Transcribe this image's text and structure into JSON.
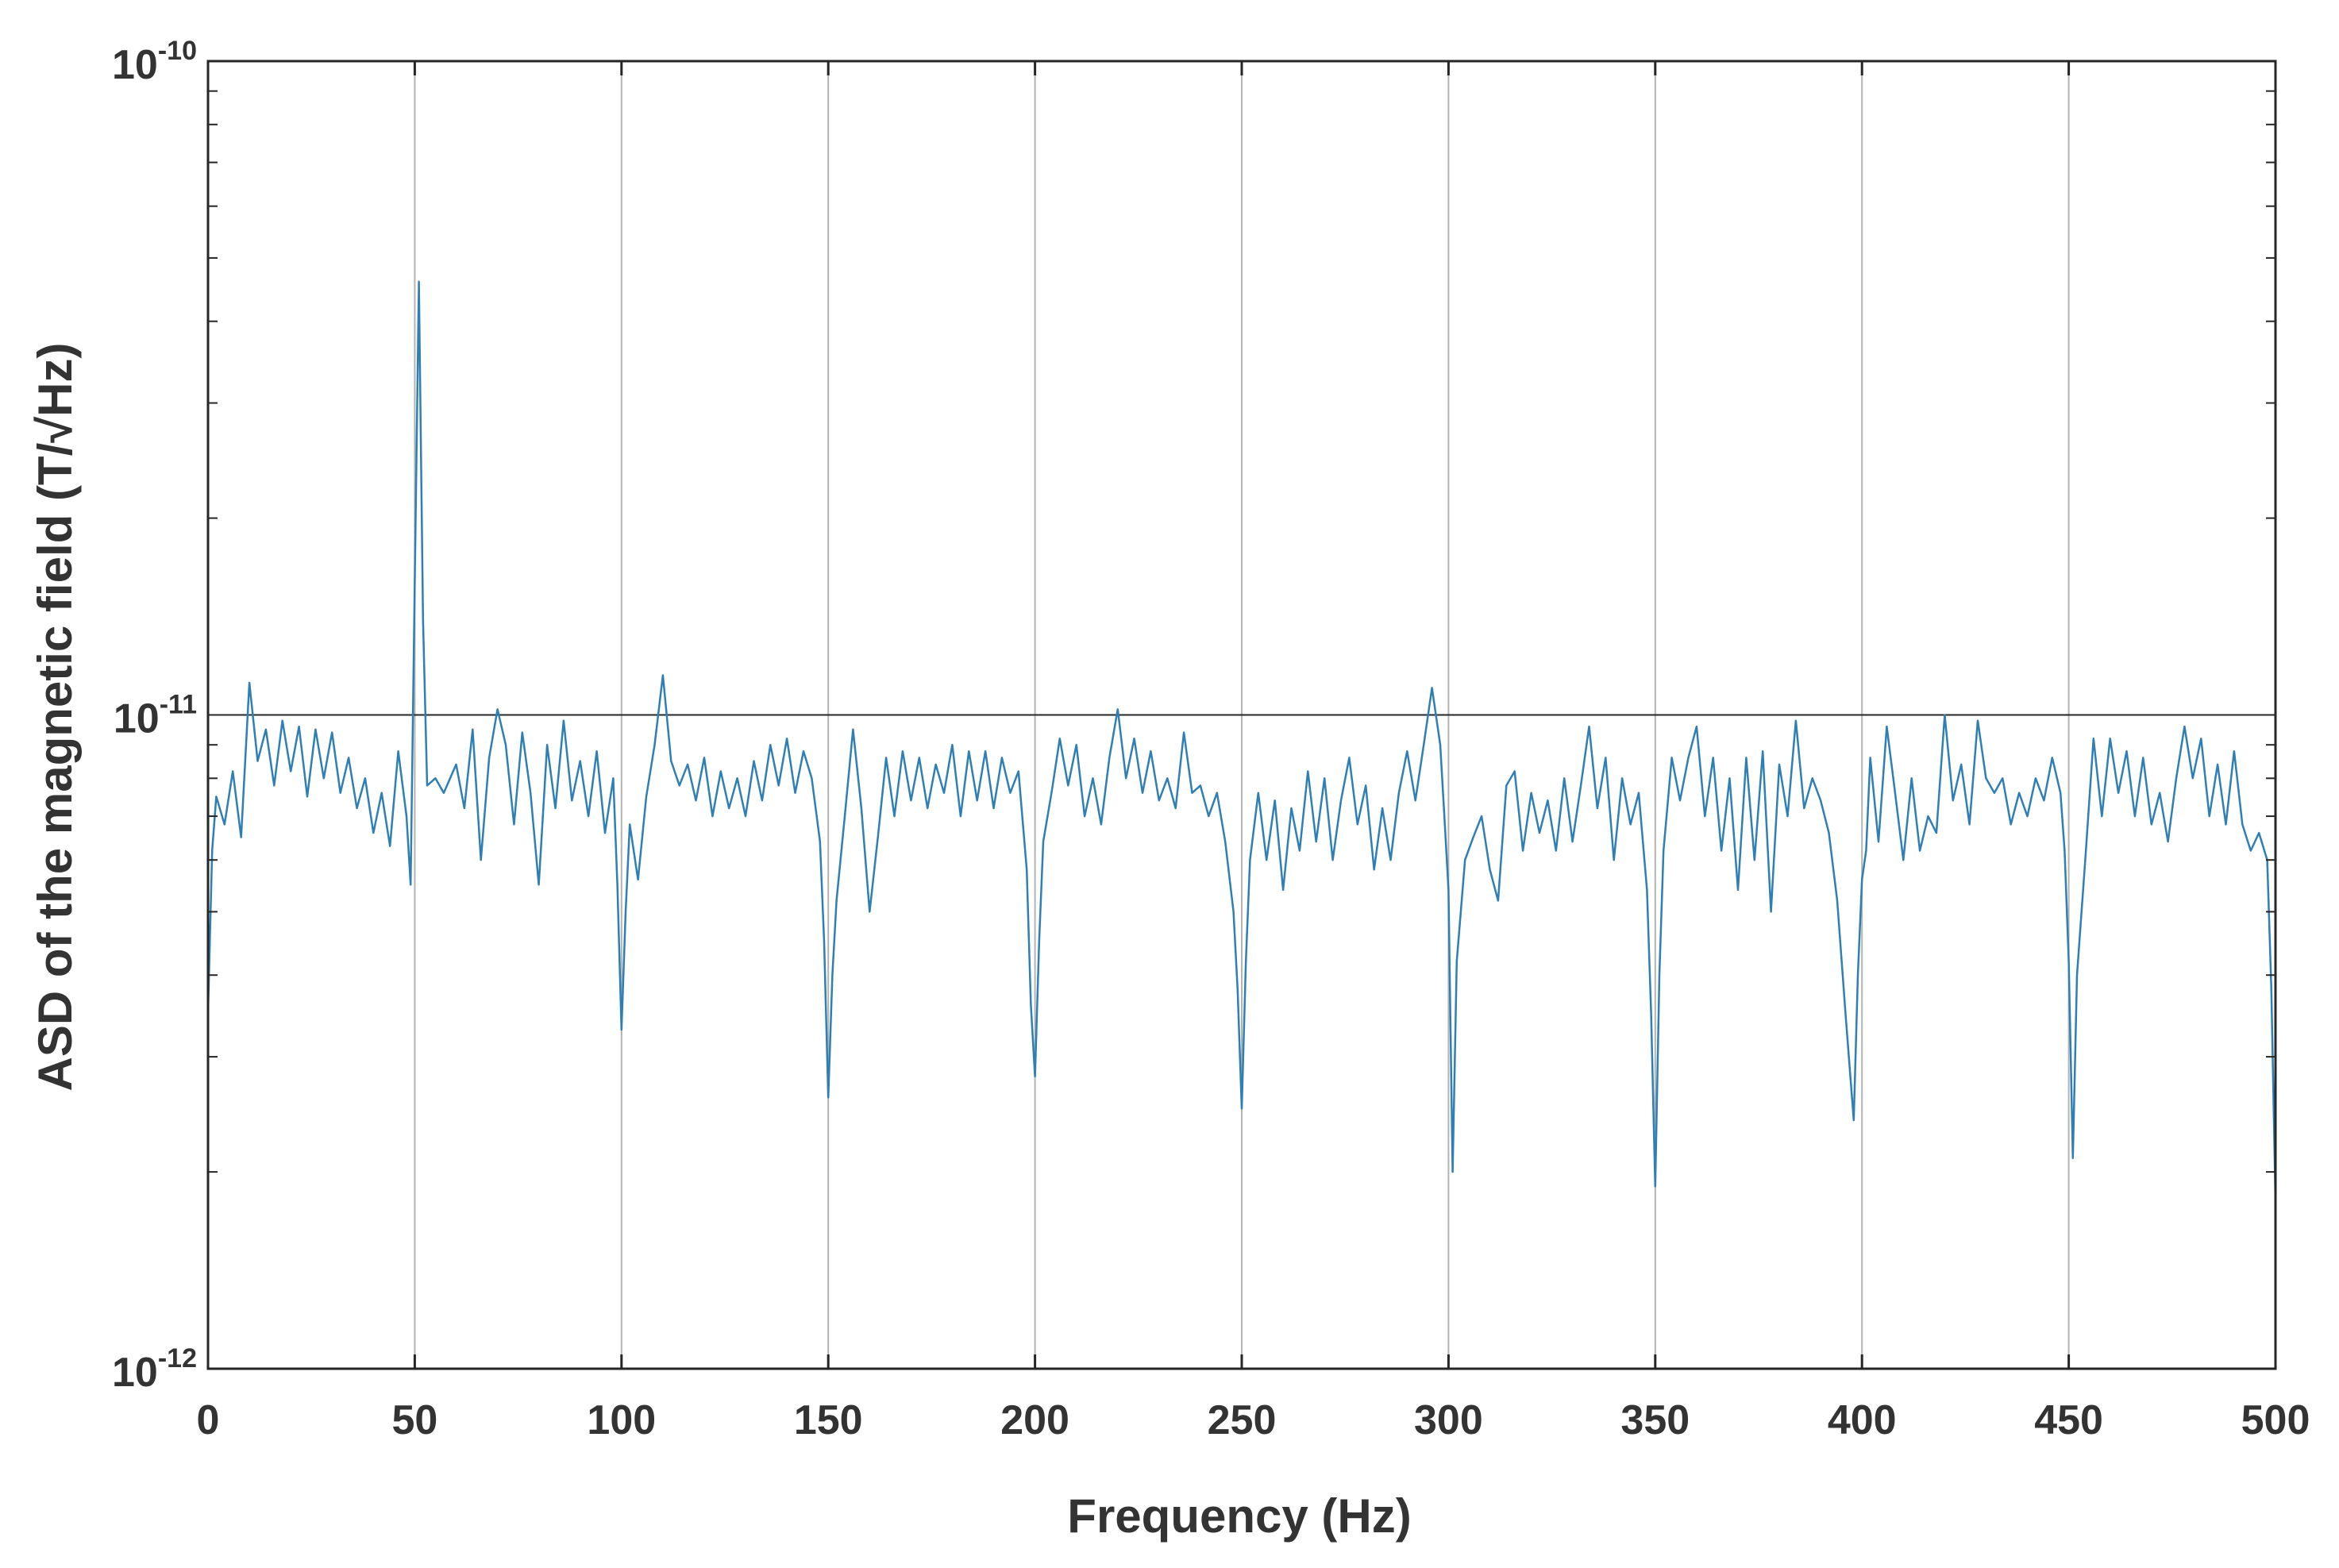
{
  "chart_data": {
    "type": "line",
    "title": "",
    "xlabel": "Frequency (Hz)",
    "ylabel": "ASD of the magnetic field (T/√Hz)",
    "xlim": [
      0,
      500
    ],
    "ylim": [
      1e-12,
      1e-10
    ],
    "yscale": "log",
    "grid": true,
    "x_ticks": [
      0,
      50,
      100,
      150,
      200,
      250,
      300,
      350,
      400,
      450,
      500
    ],
    "x_tick_labels": [
      "0",
      "50",
      "100",
      "150",
      "200",
      "250",
      "300",
      "350",
      "400",
      "450",
      "500"
    ],
    "y_ticks": [
      1e-12,
      1e-11,
      1e-10
    ],
    "y_tick_labels": [
      {
        "base": "10",
        "exp": "-12"
      },
      {
        "base": "10",
        "exp": "-11"
      },
      {
        "base": "10",
        "exp": "-10"
      }
    ],
    "series": [
      {
        "color": "#2f7fb5",
        "x": [
          0,
          1,
          2,
          4,
          6,
          8,
          10,
          12,
          14,
          16,
          18,
          20,
          22,
          24,
          26,
          28,
          30,
          32,
          34,
          36,
          38,
          40,
          42,
          44,
          46,
          48,
          49,
          50,
          51,
          52,
          53,
          55,
          57,
          60,
          62,
          64,
          66,
          68,
          70,
          72,
          74,
          76,
          78,
          80,
          82,
          84,
          86,
          88,
          90,
          92,
          94,
          96,
          98,
          99,
          100,
          101,
          102,
          104,
          106,
          108,
          110,
          112,
          114,
          116,
          118,
          120,
          122,
          124,
          126,
          128,
          130,
          132,
          134,
          136,
          138,
          140,
          142,
          144,
          146,
          148,
          149,
          150,
          151,
          152,
          154,
          156,
          158,
          160,
          162,
          164,
          166,
          168,
          170,
          172,
          174,
          176,
          178,
          180,
          182,
          184,
          186,
          188,
          190,
          192,
          194,
          196,
          198,
          199,
          200,
          201,
          202,
          204,
          206,
          208,
          210,
          212,
          214,
          216,
          218,
          220,
          222,
          224,
          226,
          228,
          230,
          232,
          234,
          236,
          238,
          240,
          242,
          244,
          246,
          248,
          249,
          250,
          251,
          252,
          254,
          256,
          258,
          260,
          262,
          264,
          266,
          268,
          270,
          272,
          274,
          276,
          278,
          280,
          282,
          284,
          286,
          288,
          290,
          292,
          294,
          296,
          298,
          299,
          300,
          301,
          302,
          304,
          306,
          308,
          310,
          312,
          314,
          316,
          318,
          320,
          322,
          324,
          326,
          328,
          330,
          332,
          334,
          336,
          338,
          340,
          342,
          344,
          346,
          348,
          349,
          350,
          351,
          352,
          354,
          356,
          358,
          360,
          362,
          364,
          366,
          368,
          370,
          372,
          374,
          376,
          378,
          380,
          382,
          384,
          386,
          388,
          390,
          392,
          394,
          396,
          398,
          399,
          400,
          401,
          402,
          404,
          406,
          408,
          410,
          412,
          414,
          416,
          418,
          420,
          422,
          424,
          426,
          428,
          430,
          432,
          434,
          436,
          438,
          440,
          442,
          444,
          446,
          448,
          449,
          450,
          451,
          452,
          454,
          456,
          458,
          460,
          462,
          464,
          466,
          468,
          470,
          472,
          474,
          476,
          478,
          480,
          482,
          484,
          486,
          488,
          490,
          492,
          494,
          496,
          498,
          499,
          500
        ],
        "y": [
          3.5e-12,
          6.2e-12,
          7.5e-12,
          6.8e-12,
          8.2e-12,
          6.5e-12,
          1.12e-11,
          8.5e-12,
          9.5e-12,
          7.8e-12,
          9.8e-12,
          8.2e-12,
          9.6e-12,
          7.5e-12,
          9.5e-12,
          8e-12,
          9.4e-12,
          7.6e-12,
          8.6e-12,
          7.2e-12,
          8e-12,
          6.6e-12,
          7.6e-12,
          6.3e-12,
          8.8e-12,
          7e-12,
          5.5e-12,
          1.6e-11,
          4.6e-11,
          1.4e-11,
          7.8e-12,
          8e-12,
          7.6e-12,
          8.4e-12,
          7.2e-12,
          9.5e-12,
          6e-12,
          8.6e-12,
          1.02e-11,
          9e-12,
          6.8e-12,
          9.4e-12,
          7.6e-12,
          5.5e-12,
          9e-12,
          7.2e-12,
          9.8e-12,
          7.4e-12,
          8.5e-12,
          7e-12,
          8.8e-12,
          6.6e-12,
          8e-12,
          5.5e-12,
          3.3e-12,
          5e-12,
          6.8e-12,
          5.6e-12,
          7.5e-12,
          9e-12,
          1.15e-11,
          8.5e-12,
          7.8e-12,
          8.4e-12,
          7.4e-12,
          8.6e-12,
          7e-12,
          8.2e-12,
          7.2e-12,
          8e-12,
          7e-12,
          8.5e-12,
          7.4e-12,
          9e-12,
          7.8e-12,
          9.2e-12,
          7.6e-12,
          8.8e-12,
          8e-12,
          6.4e-12,
          4.5e-12,
          2.6e-12,
          4e-12,
          5.2e-12,
          7e-12,
          9.5e-12,
          7.2e-12,
          5e-12,
          6.5e-12,
          8.6e-12,
          7e-12,
          8.8e-12,
          7.4e-12,
          8.6e-12,
          7.2e-12,
          8.4e-12,
          7.6e-12,
          9e-12,
          7e-12,
          8.8e-12,
          7.4e-12,
          8.8e-12,
          7.2e-12,
          8.6e-12,
          7.6e-12,
          8.2e-12,
          5.8e-12,
          3.6e-12,
          2.8e-12,
          4.5e-12,
          6.4e-12,
          7.6e-12,
          9.2e-12,
          7.8e-12,
          9e-12,
          7e-12,
          8e-12,
          6.8e-12,
          8.6e-12,
          1.02e-11,
          8e-12,
          9.2e-12,
          7.6e-12,
          8.8e-12,
          7.4e-12,
          8e-12,
          7.2e-12,
          9.4e-12,
          7.6e-12,
          7.8e-12,
          7e-12,
          7.6e-12,
          6.4e-12,
          5e-12,
          3.8e-12,
          2.5e-12,
          4.2e-12,
          6e-12,
          7.6e-12,
          6e-12,
          7.4e-12,
          5.4e-12,
          7.2e-12,
          6.2e-12,
          8.2e-12,
          6.4e-12,
          8e-12,
          6e-12,
          7.4e-12,
          8.6e-12,
          6.8e-12,
          7.8e-12,
          5.8e-12,
          7.2e-12,
          6e-12,
          7.6e-12,
          8.8e-12,
          7.4e-12,
          9e-12,
          1.1e-11,
          9e-12,
          7e-12,
          5.4e-12,
          2e-12,
          4.2e-12,
          6e-12,
          6.5e-12,
          7e-12,
          5.8e-12,
          5.2e-12,
          7.8e-12,
          8.2e-12,
          6.2e-12,
          7.6e-12,
          6.6e-12,
          7.4e-12,
          6.2e-12,
          8e-12,
          6.4e-12,
          7.8e-12,
          9.6e-12,
          7.2e-12,
          8.6e-12,
          6e-12,
          8e-12,
          6.8e-12,
          7.6e-12,
          5.4e-12,
          3.5e-12,
          1.9e-12,
          4e-12,
          6.2e-12,
          8.6e-12,
          7.4e-12,
          8.6e-12,
          9.6e-12,
          7e-12,
          8.6e-12,
          6.2e-12,
          8e-12,
          5.4e-12,
          8.6e-12,
          6e-12,
          8.8e-12,
          5e-12,
          8.4e-12,
          7e-12,
          9.8e-12,
          7.2e-12,
          8e-12,
          7.4e-12,
          6.6e-12,
          5.2e-12,
          3.5e-12,
          2.4e-12,
          4e-12,
          5.6e-12,
          6.2e-12,
          8.6e-12,
          6.4e-12,
          9.6e-12,
          7.6e-12,
          6e-12,
          8e-12,
          6.2e-12,
          7e-12,
          6.6e-12,
          1e-11,
          7.4e-12,
          8.4e-12,
          6.8e-12,
          9.8e-12,
          8e-12,
          7.6e-12,
          8e-12,
          6.8e-12,
          7.6e-12,
          7e-12,
          8e-12,
          7.4e-12,
          8.6e-12,
          7.6e-12,
          6.2e-12,
          4.2e-12,
          2.1e-12,
          4e-12,
          6e-12,
          9.2e-12,
          7e-12,
          9.2e-12,
          7.6e-12,
          8.8e-12,
          7e-12,
          8.6e-12,
          6.8e-12,
          7.6e-12,
          6.4e-12,
          8e-12,
          9.6e-12,
          8e-12,
          9.2e-12,
          7e-12,
          8.4e-12,
          6.8e-12,
          8.8e-12,
          6.8e-12,
          6.2e-12,
          6.6e-12,
          6e-12,
          3.8e-12,
          1.8e-12
        ]
      }
    ]
  }
}
